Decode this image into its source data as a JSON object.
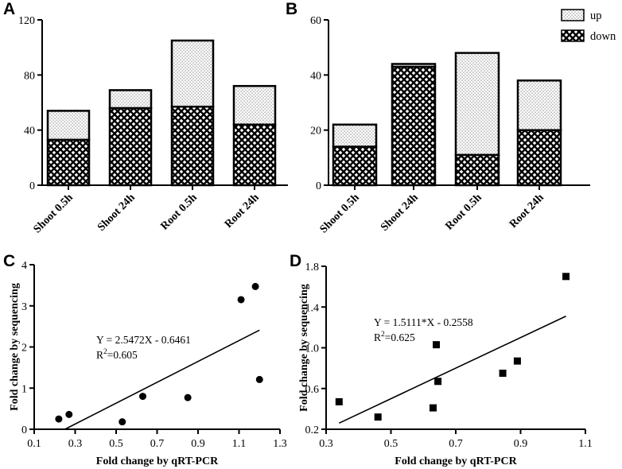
{
  "chart_data": [
    {
      "panel": "A",
      "type": "bar",
      "stacked": true,
      "categories": [
        "Shoot 0.5h",
        "Shoot 24h",
        "Root 0.5h",
        "Root 24h"
      ],
      "series": [
        {
          "name": "down",
          "values": [
            33,
            56,
            57,
            44
          ]
        },
        {
          "name": "up",
          "values": [
            21,
            13,
            48,
            28
          ]
        }
      ],
      "yticks": [
        "0",
        "40",
        "80",
        "120"
      ],
      "ylim": [
        0,
        120
      ],
      "xlabel": "",
      "ylabel": ""
    },
    {
      "panel": "B",
      "type": "bar",
      "stacked": true,
      "categories": [
        "Shoot 0.5h",
        "Shoot 24h",
        "Root 0.5h",
        "Root 24h"
      ],
      "series": [
        {
          "name": "down",
          "values": [
            14,
            43,
            11,
            20
          ]
        },
        {
          "name": "up",
          "values": [
            8,
            1,
            37,
            18
          ]
        }
      ],
      "yticks": [
        "0",
        "20",
        "40",
        "60"
      ],
      "ylim": [
        0,
        60
      ],
      "legend": [
        "up",
        "down"
      ],
      "legend_position": "top-right",
      "xlabel": "",
      "ylabel": ""
    },
    {
      "panel": "C",
      "type": "scatter",
      "marker": "circle",
      "x": [
        0.22,
        0.27,
        0.53,
        0.63,
        0.85,
        1.11,
        1.18,
        1.2
      ],
      "y": [
        0.25,
        0.36,
        0.18,
        0.8,
        0.77,
        3.15,
        3.47,
        1.21
      ],
      "fit_line": {
        "x": [
          0.25,
          1.2
        ],
        "y": [
          0.0,
          2.41
        ]
      },
      "equation": "Y = 2.5472X - 0.6461",
      "r2_prefix": "R",
      "r2_exp": "2",
      "r2_value": "=0.605",
      "xticks": [
        "0.1",
        "0.3",
        "0.5",
        "0.7",
        "0.9",
        "1.1",
        "1.3"
      ],
      "yticks": [
        "0",
        "1",
        "2",
        "3",
        "4"
      ],
      "xlim": [
        0.1,
        1.3
      ],
      "ylim": [
        0,
        4
      ],
      "xlabel": "Fold change by qRT-PCR",
      "ylabel": "Fold change by sequencing"
    },
    {
      "panel": "D",
      "type": "scatter",
      "marker": "square",
      "x": [
        0.34,
        0.46,
        0.63,
        0.64,
        0.645,
        0.845,
        0.89,
        1.04
      ],
      "y": [
        0.47,
        0.32,
        0.41,
        1.03,
        0.67,
        0.75,
        0.87,
        1.7
      ],
      "fit_line": {
        "x": [
          0.34,
          1.04
        ],
        "y": [
          0.26,
          1.31
        ]
      },
      "equation": "Y = 1.5111*X - 0.2558",
      "r2_prefix": "R",
      "r2_exp": "2",
      "r2_value": "=0.625",
      "xticks": [
        "0.3",
        "0.5",
        "0.7",
        "0.9",
        "1.1"
      ],
      "yticks": [
        "0.2",
        "0.6",
        "1.0",
        "1.4",
        "1.8"
      ],
      "xlim": [
        0.3,
        1.1
      ],
      "ylim": [
        0.2,
        1.8
      ],
      "xlabel": "Fold change by qRT-PCR",
      "ylabel": "Fold change by sequencing"
    }
  ]
}
